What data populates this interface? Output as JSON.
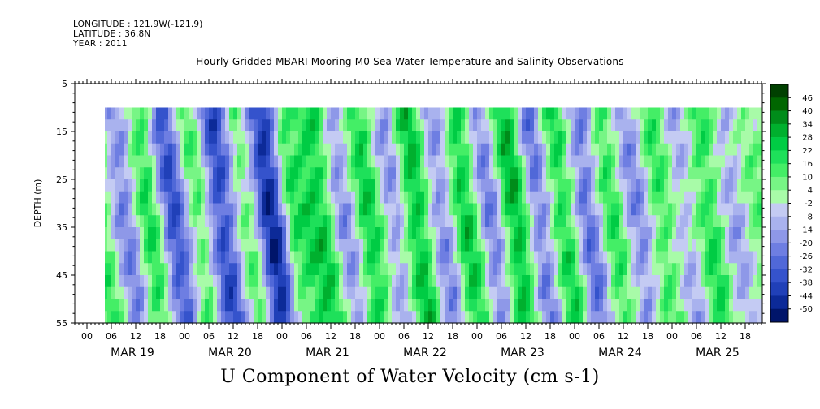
{
  "header": {
    "longitude": "LONGITUDE : 121.9W(-121.9)",
    "latitude": "LATITUDE : 36.8N",
    "year": "YEAR : 2011"
  },
  "chart_data": {
    "type": "heatmap",
    "title": "Hourly Gridded MBARI Mooring M0 Sea Water Temperature and Salinity Observations",
    "xlabel": "U Component of Water Velocity (cm s-1)",
    "ylabel": "DEPTH (m)",
    "ylim": [
      55,
      5
    ],
    "y_ticks": [
      5,
      15,
      25,
      35,
      45,
      55
    ],
    "x_hour_ticks": [
      "00",
      "06",
      "12",
      "18",
      "00",
      "06",
      "12",
      "18",
      "00",
      "06",
      "12",
      "18",
      "00",
      "06",
      "12",
      "18",
      "00",
      "06",
      "12",
      "18",
      "00",
      "06",
      "12",
      "18",
      "00",
      "06",
      "12",
      "18"
    ],
    "x_day_labels": [
      "MAR 19",
      "MAR 20",
      "MAR 21",
      "MAR 22",
      "MAR 23",
      "MAR 24",
      "MAR 25"
    ],
    "data_depth_range": [
      10,
      55
    ],
    "colorbar": {
      "levels": [
        46,
        40,
        34,
        28,
        22,
        16,
        10,
        4,
        -2,
        -8,
        -14,
        -20,
        -26,
        -32,
        -38,
        -44,
        -50
      ],
      "colors": [
        "#004000",
        "#006600",
        "#008c1a",
        "#00b02e",
        "#00cc44",
        "#1ee05a",
        "#44ee66",
        "#77f585",
        "#a8fba8",
        "#c4cbf3",
        "#a9b2ee",
        "#8e98e8",
        "#6e7ee2",
        "#5068d8",
        "#3553cc",
        "#2040b8",
        "#0c2a98",
        "#00156a"
      ]
    },
    "u_velocity_column_pattern": [
      {
        "time": "MAR 18 12",
        "u": -10
      },
      {
        "time": "MAR 19 00",
        "u": 14
      },
      {
        "time": "MAR 19 06",
        "u": -20
      },
      {
        "time": "MAR 19 12",
        "u": 18
      },
      {
        "time": "MAR 19 18",
        "u": -34
      },
      {
        "time": "MAR 20 00",
        "u": 10
      },
      {
        "time": "MAR 20 06",
        "u": -36
      },
      {
        "time": "MAR 20 12",
        "u": 8
      },
      {
        "time": "MAR 20 18",
        "u": -46
      },
      {
        "time": "MAR 21 00",
        "u": 16
      },
      {
        "time": "MAR 21 06",
        "u": 24
      },
      {
        "time": "MAR 21 12",
        "u": -16
      },
      {
        "time": "MAR 21 18",
        "u": 22
      },
      {
        "time": "MAR 22 00",
        "u": -14
      },
      {
        "time": "MAR 22 06",
        "u": 26
      },
      {
        "time": "MAR 22 12",
        "u": -18
      },
      {
        "time": "MAR 22 18",
        "u": 24
      },
      {
        "time": "MAR 23 00",
        "u": -20
      },
      {
        "time": "MAR 23 06",
        "u": 28
      },
      {
        "time": "MAR 23 12",
        "u": -22
      },
      {
        "time": "MAR 23 18",
        "u": 20
      },
      {
        "time": "MAR 24 00",
        "u": -24
      },
      {
        "time": "MAR 24 06",
        "u": 16
      },
      {
        "time": "MAR 24 12",
        "u": -18
      },
      {
        "time": "MAR 24 18",
        "u": 14
      },
      {
        "time": "MAR 25 00",
        "u": -10
      },
      {
        "time": "MAR 25 06",
        "u": 18
      },
      {
        "time": "MAR 25 12",
        "u": -12
      },
      {
        "time": "MAR 25 18",
        "u": 8
      }
    ]
  }
}
